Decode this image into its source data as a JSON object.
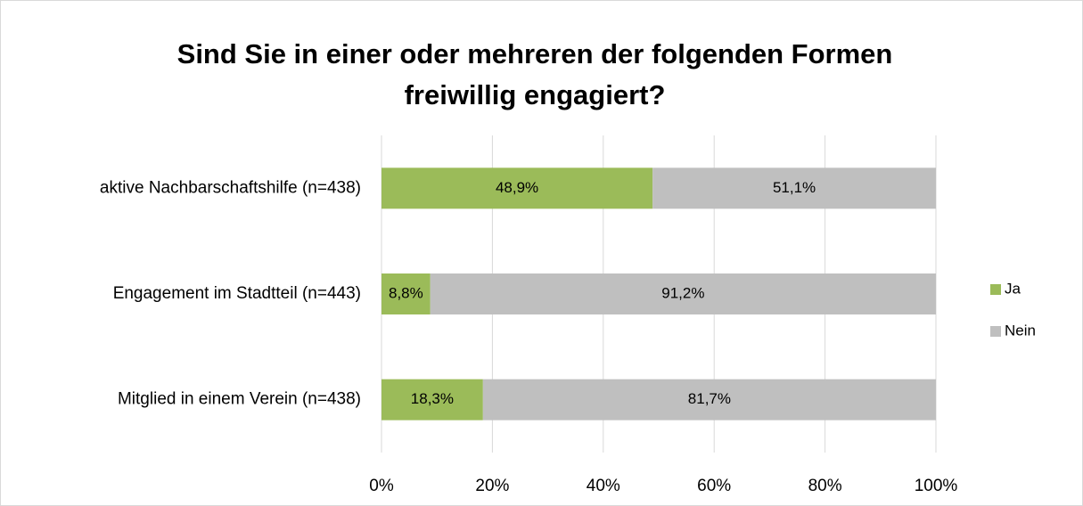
{
  "chart_data": {
    "type": "stacked_bar_horizontal",
    "title": "Sind Sie in einer oder mehreren der folgenden Formen freiwillig engagiert?",
    "categories": [
      "aktive Nachbarschaftshilfe (n=438)",
      "Engagement im Stadtteil (n=443)",
      "Mitglied in einem Verein (n=438)"
    ],
    "series": [
      {
        "name": "Ja",
        "color": "#9bbb59",
        "values": [
          48.9,
          8.8,
          18.3
        ],
        "value_labels": [
          "48,9%",
          "8,8%",
          "18,3%"
        ]
      },
      {
        "name": "Nein",
        "color": "#bfbfbf",
        "values": [
          51.1,
          91.2,
          81.7
        ],
        "value_labels": [
          "51,1%",
          "91,2%",
          "81,7%"
        ]
      }
    ],
    "xlim": [
      0,
      100
    ],
    "xticks": [
      {
        "value": 0,
        "label": "0%"
      },
      {
        "value": 20,
        "label": "20%"
      },
      {
        "value": 40,
        "label": "40%"
      },
      {
        "value": 60,
        "label": "60%"
      },
      {
        "value": 80,
        "label": "80%"
      },
      {
        "value": 100,
        "label": "100%"
      }
    ],
    "grid": true,
    "legend": "right"
  }
}
